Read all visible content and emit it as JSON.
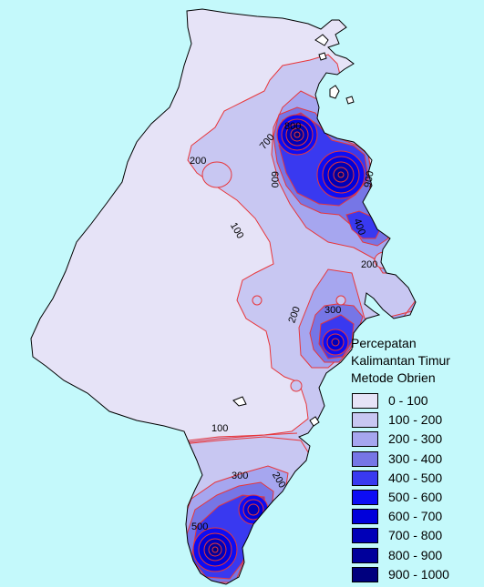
{
  "map": {
    "background_color": "#c4f9fb",
    "contour_line_color": "#e8363a",
    "coastline_color": "#000000",
    "contour_labels": [
      "700",
      "200",
      "600",
      "800",
      "900",
      "100",
      "400",
      "200",
      "200",
      "300",
      "100",
      "300",
      "200",
      "500"
    ]
  },
  "legend": {
    "title_lines": [
      "Percepatan",
      "Kalimantan Timur",
      "Metode Obrien"
    ],
    "items": [
      {
        "label": "0 - 100",
        "color": "#e6e3f7"
      },
      {
        "label": "100 - 200",
        "color": "#c8c7f2"
      },
      {
        "label": "200 - 300",
        "color": "#a6a6ef"
      },
      {
        "label": "300 - 400",
        "color": "#7676e6"
      },
      {
        "label": "400 - 500",
        "color": "#3939f0"
      },
      {
        "label": "500 - 600",
        "color": "#0d0df5"
      },
      {
        "label": "600 - 700",
        "color": "#0000db"
      },
      {
        "label": "700 - 800",
        "color": "#0000b8"
      },
      {
        "label": "800 - 900",
        "color": "#00009b"
      },
      {
        "label": "900 - 1000",
        "color": "#00007e"
      }
    ]
  }
}
